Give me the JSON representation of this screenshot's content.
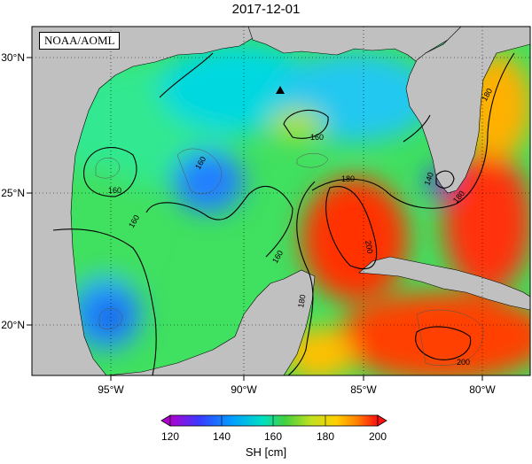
{
  "title": "2017-12-01",
  "credit": "NOAA/AOML",
  "lat_labels": [
    "30°N",
    "25°N",
    "20°N"
  ],
  "lon_labels": [
    "95°W",
    "90°W",
    "85°W",
    "80°W"
  ],
  "contour_labels": [
    "180",
    "160",
    "160",
    "160",
    "160",
    "160",
    "180",
    "140",
    "180",
    "200",
    "200",
    "180"
  ],
  "colorbar": {
    "title": "SH [cm]",
    "ticks": [
      "120",
      "140",
      "160",
      "180",
      "200"
    ],
    "colors": [
      "#b000d0",
      "#3a3aff",
      "#00a0ff",
      "#00e0c0",
      "#40d040",
      "#c0e020",
      "#ffd000",
      "#ff8000",
      "#ff1010"
    ]
  },
  "colors": {
    "land": "#c0c0c0",
    "ocean_low": "#2020d0",
    "ocean_mid": "#40e060",
    "ocean_high": "#ff2000"
  }
}
